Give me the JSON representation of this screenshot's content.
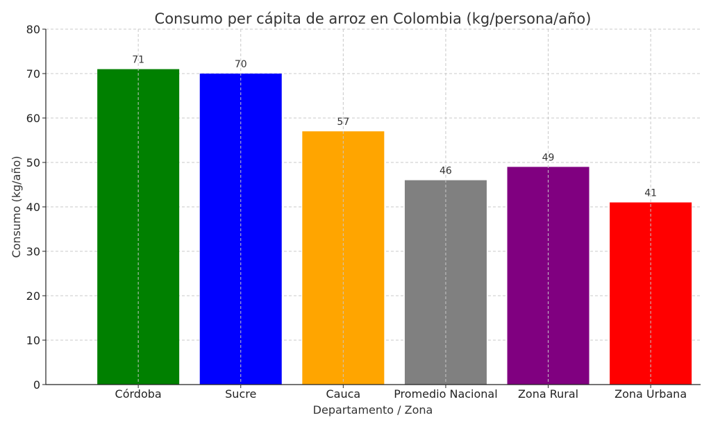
{
  "chart_data": {
    "type": "bar",
    "title": "Consumo per cápita de arroz en Colombia (kg/persona/año)",
    "xlabel": "Departamento / Zona",
    "ylabel": "Consumo (kg/año)",
    "categories": [
      "Córdoba",
      "Sucre",
      "Cauca",
      "Promedio Nacional",
      "Zona Rural",
      "Zona Urbana"
    ],
    "values": [
      71,
      70,
      57,
      46,
      49,
      41
    ],
    "colors": [
      "#008000",
      "#0000ff",
      "#ffa500",
      "#808080",
      "#800080",
      "#ff0000"
    ],
    "ylim": [
      0,
      80
    ],
    "yticks": [
      0,
      10,
      20,
      30,
      40,
      50,
      60,
      70,
      80
    ],
    "grid": true,
    "data_labels": true
  }
}
